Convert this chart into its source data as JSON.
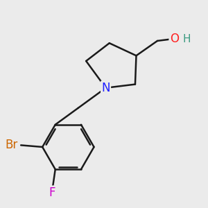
{
  "background_color": "#ebebeb",
  "bond_color": "#1a1a1a",
  "atom_colors": {
    "N": "#2020ff",
    "O": "#ff2020",
    "H": "#3a9a80",
    "Br": "#cc6600",
    "F": "#cc00cc"
  },
  "line_width": 1.8,
  "font_size": 12,
  "figsize": [
    3.0,
    3.0
  ],
  "dpi": 100,
  "xlim": [
    -2.5,
    3.0
  ],
  "ylim": [
    -3.5,
    2.2
  ]
}
